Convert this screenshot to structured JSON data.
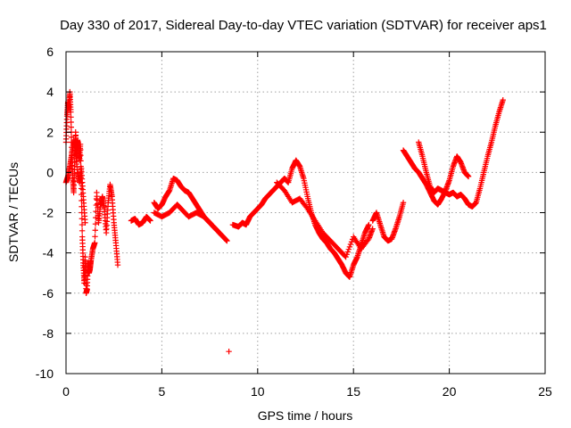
{
  "chart_data": {
    "type": "scatter",
    "title": "Day 330 of 2017, Sidereal Day-to-day VTEC variation (SDTVAR) for receiver aps1",
    "xlabel": "GPS time / hours",
    "ylabel": "SDTVAR / TECUs",
    "xlim": [
      0,
      25
    ],
    "ylim": [
      -10,
      6
    ],
    "x_ticks": [
      0,
      5,
      10,
      15,
      20,
      25
    ],
    "y_ticks": [
      -10,
      -8,
      -6,
      -4,
      -2,
      0,
      2,
      4,
      6
    ],
    "x_tick_labels": [
      "0",
      "5",
      "10",
      "15",
      "20",
      "25"
    ],
    "y_tick_labels": [
      "-10",
      "-8",
      "-6",
      "-4",
      "-2",
      "0",
      "2",
      "4",
      "6"
    ],
    "grid": true,
    "marker": "+",
    "color": "#ff0000",
    "series": [
      {
        "name": "SDTVAR",
        "segments": [
          [
            [
              0.0,
              1.5
            ],
            [
              0.05,
              2.8
            ],
            [
              0.1,
              3.5
            ],
            [
              0.15,
              3.2
            ],
            [
              0.2,
              4.0
            ],
            [
              0.25,
              3.0
            ],
            [
              0.3,
              1.0
            ],
            [
              0.35,
              -0.3
            ],
            [
              0.4,
              -1.0
            ],
            [
              0.45,
              0.5
            ],
            [
              0.5,
              2.0
            ],
            [
              0.55,
              0.8
            ],
            [
              0.6,
              1.6
            ],
            [
              0.65,
              1.2
            ],
            [
              0.7,
              0.6
            ],
            [
              0.75,
              1.4
            ],
            [
              0.8,
              -0.8
            ],
            [
              0.85,
              -3.2
            ],
            [
              0.9,
              -4.5
            ],
            [
              0.95,
              -5.5
            ],
            [
              1.0,
              -4.2
            ],
            [
              1.05,
              -6.0
            ],
            [
              1.1,
              -5.8
            ],
            [
              1.15,
              -4.5
            ],
            [
              1.2,
              -5.0
            ],
            [
              1.25,
              -4.8
            ],
            [
              1.3,
              -4.4
            ],
            [
              1.4,
              -3.8
            ],
            [
              1.5,
              -3.5
            ],
            [
              1.6,
              -1.0
            ],
            [
              1.7,
              -2.5
            ],
            [
              1.8,
              -1.6
            ],
            [
              1.9,
              -1.2
            ],
            [
              2.0,
              -1.8
            ],
            [
              2.1,
              -3.0
            ],
            [
              2.2,
              -1.5
            ],
            [
              2.3,
              -0.6
            ],
            [
              2.4,
              -1.2
            ],
            [
              2.5,
              -2.5
            ],
            [
              2.6,
              -3.5
            ],
            [
              2.7,
              -4.6
            ]
          ],
          [
            [
              0.0,
              -0.5
            ],
            [
              0.1,
              -0.2
            ],
            [
              0.2,
              0.3
            ],
            [
              0.3,
              0.9
            ],
            [
              0.4,
              1.6
            ],
            [
              0.5,
              1.1
            ],
            [
              0.6,
              0.0
            ],
            [
              0.7,
              -0.5
            ],
            [
              0.8,
              0.2
            ],
            [
              0.9,
              -1.2
            ],
            [
              1.0,
              -2.5
            ]
          ],
          [
            [
              3.4,
              -2.4
            ],
            [
              3.6,
              -2.3
            ],
            [
              3.8,
              -2.6
            ],
            [
              4.0,
              -2.5
            ],
            [
              4.2,
              -2.2
            ],
            [
              4.4,
              -2.4
            ]
          ],
          [
            [
              4.6,
              -1.5
            ],
            [
              4.8,
              -1.8
            ],
            [
              5.0,
              -1.6
            ],
            [
              5.2,
              -1.2
            ],
            [
              5.4,
              -0.9
            ],
            [
              5.6,
              -0.3
            ],
            [
              5.8,
              -0.4
            ],
            [
              6.0,
              -0.7
            ],
            [
              6.2,
              -0.9
            ],
            [
              6.4,
              -1.0
            ],
            [
              6.6,
              -1.3
            ],
            [
              6.8,
              -1.6
            ],
            [
              7.0,
              -1.9
            ],
            [
              7.2,
              -2.2
            ],
            [
              7.4,
              -2.4
            ],
            [
              7.6,
              -2.6
            ],
            [
              7.8,
              -2.8
            ],
            [
              8.0,
              -3.0
            ],
            [
              8.2,
              -3.2
            ],
            [
              8.4,
              -3.4
            ]
          ],
          [
            [
              4.6,
              -2.0
            ],
            [
              5.0,
              -2.2
            ],
            [
              5.4,
              -2.0
            ],
            [
              5.8,
              -1.6
            ],
            [
              6.0,
              -1.8
            ],
            [
              6.4,
              -2.2
            ],
            [
              6.8,
              -2.0
            ],
            [
              7.2,
              -2.2
            ],
            [
              7.6,
              -2.6
            ],
            [
              8.0,
              -3.0
            ]
          ],
          [
            [
              8.7,
              -2.6
            ],
            [
              9.0,
              -2.7
            ],
            [
              9.2,
              -2.5
            ],
            [
              9.4,
              -2.6
            ],
            [
              9.6,
              -2.2
            ],
            [
              9.8,
              -2.0
            ],
            [
              10.0,
              -1.8
            ],
            [
              10.2,
              -1.6
            ],
            [
              10.4,
              -1.3
            ],
            [
              10.6,
              -1.1
            ],
            [
              10.8,
              -0.9
            ],
            [
              11.0,
              -0.7
            ],
            [
              11.2,
              -0.5
            ],
            [
              11.4,
              -0.3
            ],
            [
              11.6,
              -0.5
            ],
            [
              11.8,
              0.2
            ],
            [
              12.0,
              0.6
            ],
            [
              12.2,
              0.3
            ],
            [
              12.4,
              -0.3
            ],
            [
              12.6,
              -1.2
            ],
            [
              12.8,
              -2.0
            ],
            [
              13.0,
              -2.6
            ],
            [
              13.2,
              -3.0
            ],
            [
              13.4,
              -3.3
            ],
            [
              13.6,
              -3.5
            ],
            [
              13.8,
              -3.8
            ],
            [
              14.0,
              -4.0
            ],
            [
              14.2,
              -4.3
            ],
            [
              14.4,
              -4.6
            ],
            [
              14.6,
              -5.0
            ],
            [
              14.8,
              -5.2
            ],
            [
              15.0,
              -4.6
            ],
            [
              15.2,
              -4.2
            ],
            [
              15.4,
              -3.6
            ],
            [
              15.6,
              -3.0
            ],
            [
              15.8,
              -2.6
            ]
          ],
          [
            [
              11.0,
              -0.5
            ],
            [
              11.4,
              -0.9
            ],
            [
              11.8,
              -1.5
            ],
            [
              12.2,
              -1.3
            ],
            [
              12.6,
              -1.8
            ],
            [
              13.0,
              -2.4
            ],
            [
              13.4,
              -3.0
            ],
            [
              13.8,
              -3.4
            ],
            [
              14.2,
              -3.8
            ],
            [
              14.6,
              -4.2
            ],
            [
              15.0,
              -3.2
            ],
            [
              15.4,
              -3.8
            ],
            [
              15.8,
              -3.3
            ],
            [
              16.0,
              -2.8
            ]
          ],
          [
            [
              16.0,
              -2.4
            ],
            [
              16.2,
              -2.0
            ],
            [
              16.4,
              -2.6
            ],
            [
              16.6,
              -3.2
            ],
            [
              16.8,
              -3.4
            ],
            [
              17.0,
              -3.3
            ],
            [
              17.2,
              -2.8
            ],
            [
              17.4,
              -2.2
            ],
            [
              17.6,
              -1.5
            ]
          ],
          [
            [
              17.6,
              1.1
            ],
            [
              17.8,
              0.8
            ],
            [
              18.0,
              0.5
            ],
            [
              18.2,
              0.2
            ],
            [
              18.4,
              0.0
            ],
            [
              18.6,
              -0.3
            ],
            [
              18.8,
              -0.6
            ],
            [
              19.0,
              -1.0
            ],
            [
              19.2,
              -1.4
            ],
            [
              19.4,
              -1.6
            ],
            [
              19.6,
              -1.3
            ],
            [
              19.8,
              -0.9
            ],
            [
              20.0,
              -0.4
            ],
            [
              20.2,
              0.3
            ],
            [
              20.4,
              0.8
            ],
            [
              20.6,
              0.5
            ],
            [
              20.8,
              0.0
            ],
            [
              21.0,
              -0.2
            ]
          ],
          [
            [
              18.4,
              1.5
            ],
            [
              18.6,
              0.8
            ],
            [
              18.8,
              0.0
            ],
            [
              19.0,
              -0.7
            ],
            [
              19.2,
              -1.0
            ],
            [
              19.4,
              -0.8
            ],
            [
              19.6,
              -0.9
            ],
            [
              19.8,
              -1.0
            ],
            [
              20.0,
              -1.1
            ],
            [
              20.2,
              -1.0
            ],
            [
              20.4,
              -1.2
            ],
            [
              20.6,
              -1.1
            ],
            [
              20.8,
              -1.3
            ],
            [
              21.0,
              -1.6
            ],
            [
              21.2,
              -1.7
            ],
            [
              21.4,
              -1.5
            ],
            [
              21.6,
              -0.8
            ],
            [
              21.8,
              0.0
            ],
            [
              22.0,
              0.8
            ],
            [
              22.2,
              1.5
            ],
            [
              22.4,
              2.3
            ],
            [
              22.6,
              3.0
            ],
            [
              22.8,
              3.6
            ]
          ],
          [
            [
              8.5,
              -8.9
            ]
          ]
        ]
      }
    ]
  }
}
